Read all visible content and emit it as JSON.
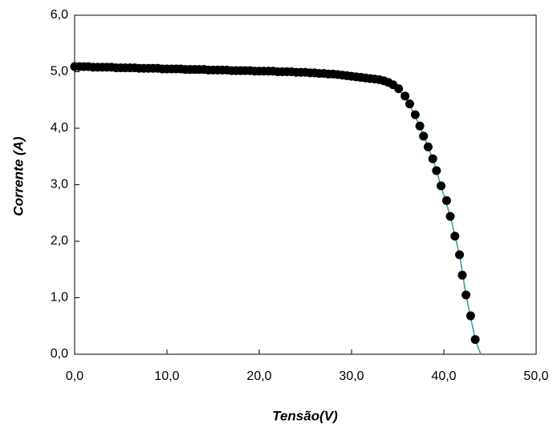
{
  "chart_data": {
    "type": "scatter",
    "x_label": "Tensão(V)",
    "y_label": "Corrente (A)",
    "xlim": [
      0,
      50
    ],
    "ylim": [
      0,
      6
    ],
    "xticks": [
      {
        "value": 0,
        "label": "0,0"
      },
      {
        "value": 10,
        "label": "10,0"
      },
      {
        "value": 20,
        "label": "20,0"
      },
      {
        "value": 30,
        "label": "30,0"
      },
      {
        "value": 40,
        "label": "40,0"
      },
      {
        "value": 50,
        "label": "50,0"
      }
    ],
    "yticks": [
      {
        "value": 0,
        "label": "0,0"
      },
      {
        "value": 1,
        "label": "1,0"
      },
      {
        "value": 2,
        "label": "2,0"
      },
      {
        "value": 3,
        "label": "3,0"
      },
      {
        "value": 4,
        "label": "4,0"
      },
      {
        "value": 5,
        "label": "5,0"
      },
      {
        "value": 6,
        "label": "6,0"
      }
    ],
    "series": [
      {
        "color": "#000000",
        "marker": "circle",
        "x": [
          0,
          0.5,
          1,
          1.5,
          2,
          2.5,
          3,
          3.5,
          4,
          4.5,
          5,
          5.5,
          6,
          6.5,
          7,
          7.5,
          8,
          8.5,
          9,
          9.5,
          10,
          10.5,
          11,
          11.5,
          12,
          12.5,
          13,
          13.5,
          14,
          14.5,
          15,
          15.5,
          16,
          16.5,
          17,
          17.5,
          18,
          18.5,
          19,
          19.5,
          20,
          20.5,
          21,
          21.5,
          22,
          22.5,
          23,
          23.5,
          24,
          24.5,
          25,
          25.5,
          26,
          26.5,
          27,
          27.5,
          28,
          28.5,
          29,
          29.5,
          30,
          30.5,
          31,
          31.5,
          32,
          32.5,
          33,
          33.5,
          34,
          34.5,
          35.1,
          35.8,
          36.3,
          36.9,
          37.4,
          37.8,
          38.3,
          38.8,
          39.2,
          39.7,
          40.3,
          40.7,
          41.2,
          41.7,
          42.0,
          42.4,
          42.9,
          43.4
        ],
        "values": [
          5.09,
          5.09,
          5.09,
          5.09,
          5.08,
          5.08,
          5.08,
          5.08,
          5.08,
          5.07,
          5.07,
          5.07,
          5.07,
          5.07,
          5.06,
          5.06,
          5.06,
          5.06,
          5.06,
          5.05,
          5.05,
          5.05,
          5.05,
          5.05,
          5.04,
          5.04,
          5.04,
          5.04,
          5.04,
          5.03,
          5.03,
          5.03,
          5.03,
          5.03,
          5.02,
          5.02,
          5.02,
          5.02,
          5.02,
          5.01,
          5.01,
          5.01,
          5.01,
          5.01,
          5.0,
          5.0,
          5.0,
          5.0,
          4.99,
          4.99,
          4.99,
          4.98,
          4.98,
          4.97,
          4.97,
          4.96,
          4.96,
          4.95,
          4.94,
          4.93,
          4.92,
          4.91,
          4.9,
          4.89,
          4.88,
          4.87,
          4.86,
          4.84,
          4.81,
          4.77,
          4.7,
          4.57,
          4.43,
          4.24,
          4.04,
          3.86,
          3.67,
          3.46,
          3.25,
          2.98,
          2.72,
          2.44,
          2.09,
          1.76,
          1.4,
          1.05,
          0.68,
          0.26
        ]
      },
      {
        "color": "#2e9a9a",
        "marker": "line",
        "x": [
          0,
          10,
          20,
          30,
          34,
          35.8,
          37.4,
          38.8,
          39.7,
          40.7,
          41.7,
          42.4,
          43.4,
          44.0
        ],
        "values": [
          5.09,
          5.05,
          5.01,
          4.92,
          4.81,
          4.57,
          4.04,
          3.46,
          2.98,
          2.44,
          1.76,
          1.05,
          0.26,
          0
        ]
      }
    ]
  }
}
